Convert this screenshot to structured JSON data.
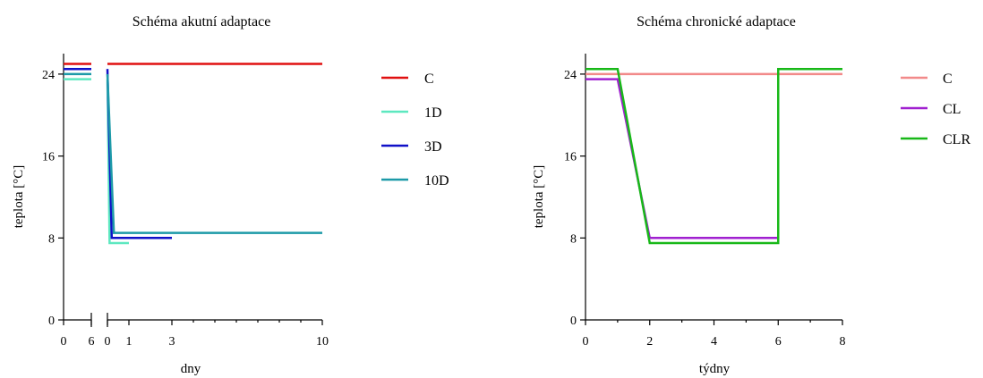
{
  "chart_data": [
    {
      "type": "line",
      "title": "Schéma akutní adaptace",
      "xlabel": "dny",
      "ylabel": "teplota [°C]",
      "ylim": [
        0,
        26
      ],
      "yticks": [
        "0",
        "8",
        "16",
        "24"
      ],
      "xticks_left": [
        "0",
        "6"
      ],
      "xticks_right": [
        "0",
        "1",
        "3",
        "10"
      ],
      "legend": [
        "C",
        "1D",
        "3D",
        "10D"
      ],
      "colors": [
        "#e01010",
        "#5de8c0",
        "#1010c8",
        "#1d9aa8"
      ],
      "series": [
        {
          "name": "C",
          "values_before": 25,
          "points": [
            [
              0,
              25
            ],
            [
              10,
              25
            ]
          ]
        },
        {
          "name": "1D",
          "values_before": 23.5,
          "points": [
            [
              0,
              23.5
            ],
            [
              0.1,
              7.5
            ],
            [
              1,
              7.5
            ]
          ]
        },
        {
          "name": "3D",
          "values_before": 24.5,
          "points": [
            [
              0,
              24.5
            ],
            [
              0.2,
              8
            ],
            [
              3,
              8
            ]
          ]
        },
        {
          "name": "10D",
          "values_before": 24,
          "points": [
            [
              0,
              24
            ],
            [
              0.3,
              8.5
            ],
            [
              10,
              8.5
            ]
          ]
        }
      ]
    },
    {
      "type": "line",
      "title": "Schéma chronické adaptace",
      "xlabel": "týdny",
      "ylabel": "teplota [°C]",
      "ylim": [
        0,
        26
      ],
      "xlim": [
        0,
        8
      ],
      "yticks": [
        "0",
        "8",
        "16",
        "24"
      ],
      "xticks": [
        "0",
        "2",
        "4",
        "6",
        "8"
      ],
      "legend": [
        "C",
        "CL",
        "CLR"
      ],
      "colors": [
        "#f28a8a",
        "#a020d0",
        "#18b818"
      ],
      "series": [
        {
          "name": "C",
          "points": [
            [
              0,
              24
            ],
            [
              8,
              24
            ]
          ]
        },
        {
          "name": "CL",
          "points": [
            [
              0,
              23.5
            ],
            [
              1,
              23.5
            ],
            [
              2,
              8
            ],
            [
              6,
              8
            ]
          ]
        },
        {
          "name": "CLR",
          "points": [
            [
              0,
              24.5
            ],
            [
              1,
              24.5
            ],
            [
              2,
              7.5
            ],
            [
              6,
              7.5
            ],
            [
              6,
              24.5
            ],
            [
              8,
              24.5
            ]
          ]
        }
      ]
    }
  ]
}
